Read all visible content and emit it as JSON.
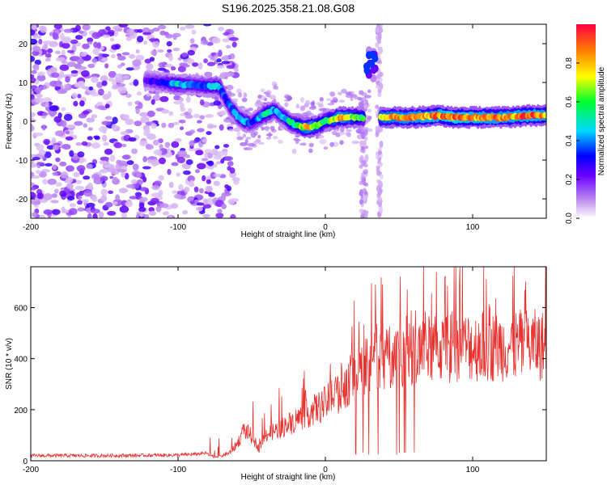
{
  "title": "S196.2025.358.21.08.G08",
  "chart_data": [
    {
      "type": "heatmap",
      "xlabel": "Height of straight line (km)",
      "ylabel": "Frequency (Hz)",
      "xlim": [
        -200,
        150
      ],
      "ylim": [
        -25,
        25
      ],
      "xticks": [
        -200,
        -100,
        0,
        100
      ],
      "yticks": [
        -20,
        -10,
        0,
        10,
        20
      ],
      "colorbar": {
        "label": "Normalized spectral amplitude",
        "range": [
          0.0,
          1.0
        ],
        "ticks": [
          "0.0",
          "0.2",
          "0.4",
          "0.6",
          "0.8"
        ]
      },
      "ridge": {
        "x": [
          -122,
          -110,
          -100,
          -90,
          -80,
          -72,
          -68,
          -65,
          -60,
          -55,
          -50,
          -45,
          -40,
          -35,
          -30,
          -25,
          -20,
          -15,
          -10,
          -5,
          0,
          5,
          10,
          15,
          20,
          25,
          40,
          60,
          80,
          84,
          100,
          120,
          140,
          150
        ],
        "freq": [
          10.5,
          10,
          9.5,
          9.5,
          9,
          9,
          6,
          4,
          1.5,
          0,
          -0.5,
          1,
          2,
          3,
          1.5,
          0,
          -1,
          -1.5,
          -1.5,
          -1,
          0,
          0.5,
          1,
          1,
          1,
          1,
          1,
          1,
          1.5,
          1,
          1,
          1,
          1.5,
          1.5
        ],
        "amplitude": [
          0.25,
          0.35,
          0.5,
          0.4,
          0.45,
          0.5,
          0.35,
          0.4,
          0.45,
          0.5,
          0.35,
          0.45,
          0.6,
          0.5,
          0.45,
          0.55,
          0.6,
          0.8,
          0.9,
          0.7,
          0.6,
          0.75,
          0.9,
          0.85,
          0.7,
          0.6,
          0.85,
          0.9,
          0.95,
          1.0,
          0.95,
          0.9,
          0.95,
          0.9
        ]
      },
      "islands": [
        {
          "x": 31,
          "freq": 15,
          "amplitude": 0.35
        }
      ]
    },
    {
      "type": "line",
      "xlabel": "Height of straight line (km)",
      "ylabel": "SNR (10 * v/v)",
      "xlim": [
        -200,
        150
      ],
      "ylim": [
        0,
        760
      ],
      "xticks": [
        -200,
        -100,
        0,
        100
      ],
      "yticks": [
        0,
        200,
        400,
        600
      ],
      "series": [
        {
          "name": "SNR",
          "color": "#e8322f",
          "envelope_x": [
            -200,
            -150,
            -100,
            -90,
            -80,
            -75,
            -70,
            -65,
            -60,
            -55,
            -50,
            -45,
            -40,
            -30,
            -20,
            -10,
            0,
            10,
            20,
            30,
            40,
            50,
            60,
            80,
            100,
            120,
            140,
            150
          ],
          "envelope_y": [
            20,
            20,
            22,
            25,
            30,
            20,
            25,
            40,
            80,
            150,
            120,
            60,
            130,
            160,
            200,
            240,
            280,
            340,
            420,
            470,
            500,
            520,
            540,
            550,
            560,
            560,
            570,
            560
          ]
        }
      ]
    }
  ]
}
